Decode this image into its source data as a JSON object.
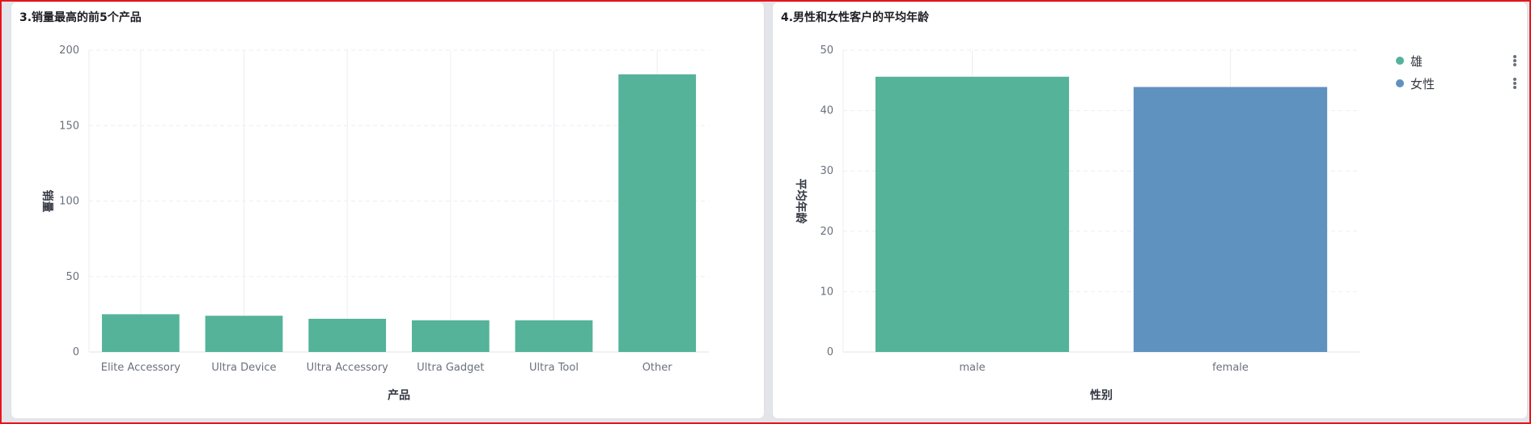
{
  "panels": [
    {
      "title": "3.销量最高的前5个产品",
      "chart_data": {
        "type": "bar",
        "categories": [
          "Elite Accessory",
          "Ultra Device",
          "Ultra Accessory",
          "Ultra Gadget",
          "Ultra Tool",
          "Other"
        ],
        "values": [
          25,
          24,
          22,
          21,
          21,
          184
        ],
        "xlabel": "产品",
        "ylabel": "销量",
        "ylim": [
          0,
          200
        ],
        "yticks": [
          0,
          50,
          100,
          150,
          200
        ],
        "grid": true,
        "colors": [
          "#54b399",
          "#54b399",
          "#54b399",
          "#54b399",
          "#54b399",
          "#54b399"
        ]
      }
    },
    {
      "title": "4.男性和女性客户的平均年龄",
      "chart_data": {
        "type": "bar",
        "categories": [
          "male",
          "female"
        ],
        "values": [
          45.6,
          43.9
        ],
        "xlabel": "性别",
        "ylabel": "平均年龄",
        "ylim": [
          0,
          50
        ],
        "yticks": [
          0,
          10,
          20,
          30,
          40,
          50
        ],
        "grid": true,
        "colors": [
          "#54b399",
          "#6092c0"
        ],
        "legend": {
          "position": "top-right",
          "items": [
            {
              "label": "雄",
              "color": "#54b399"
            },
            {
              "label": "女性",
              "color": "#6092c0"
            }
          ]
        }
      }
    }
  ]
}
